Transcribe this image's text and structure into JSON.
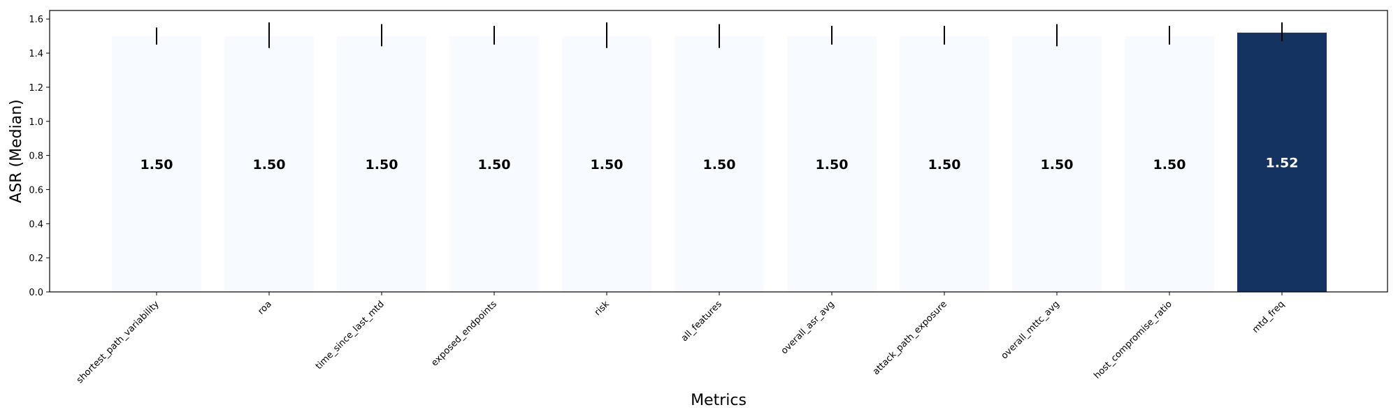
{
  "chart_data": {
    "type": "bar",
    "title": "",
    "xlabel": "Metrics",
    "ylabel": "ASR (Median)",
    "ylim": [
      0,
      1.65
    ],
    "yticks": [
      0.0,
      0.2,
      0.4,
      0.6,
      0.8,
      1.0,
      1.2,
      1.4,
      1.6
    ],
    "ytick_labels": [
      "0.0",
      "0.2",
      "0.4",
      "0.6",
      "0.8",
      "1.0",
      "1.2",
      "1.4",
      "1.6"
    ],
    "grid": false,
    "legend": "none",
    "categories": [
      "shortest_path_variability",
      "roa",
      "time_since_last_mtd",
      "exposed_endpoints",
      "risk",
      "all_features",
      "overall_asr_avg",
      "attack_path_exposure",
      "overall_mttc_avg",
      "host_compromise_ratio",
      "mtd_freq"
    ],
    "values": [
      1.5,
      1.5,
      1.5,
      1.5,
      1.5,
      1.5,
      1.5,
      1.5,
      1.5,
      1.5,
      1.52
    ],
    "value_labels": [
      "1.50",
      "1.50",
      "1.50",
      "1.50",
      "1.50",
      "1.50",
      "1.50",
      "1.50",
      "1.50",
      "1.50",
      "1.52"
    ],
    "error_low": [
      1.45,
      1.43,
      1.44,
      1.45,
      1.43,
      1.43,
      1.45,
      1.45,
      1.44,
      1.45,
      1.47
    ],
    "error_high": [
      1.55,
      1.58,
      1.57,
      1.56,
      1.58,
      1.57,
      1.56,
      1.56,
      1.57,
      1.56,
      1.58
    ],
    "colors": {
      "low": "#f7fbff",
      "high": "#143360",
      "error_bar": "#000000",
      "label_on_light": "#000000",
      "label_on_dark": "#ffffff"
    }
  }
}
